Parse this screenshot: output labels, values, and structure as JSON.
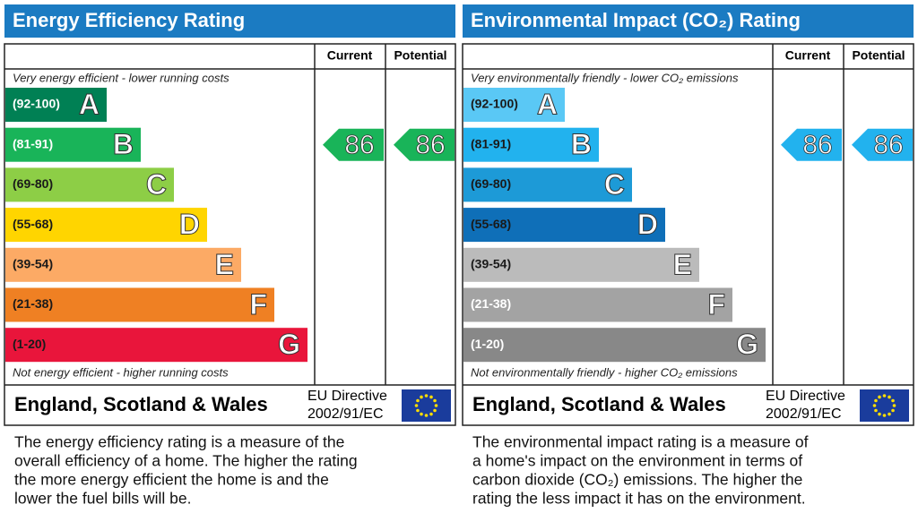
{
  "panels": [
    {
      "title": "Energy Efficiency Rating",
      "current_header": "Current",
      "potential_header": "Potential",
      "top_note": "Very energy efficient - lower running costs",
      "bottom_note": "Not energy efficient - higher running costs",
      "bands": [
        {
          "range": "(92-100)",
          "letter": "A",
          "color": "#008054",
          "text_color": "#ffffff"
        },
        {
          "range": "(81-91)",
          "letter": "B",
          "color": "#19b459",
          "text_color": "#ffffff"
        },
        {
          "range": "(69-80)",
          "letter": "C",
          "color": "#8dce46",
          "text_color": "#1a1a1a"
        },
        {
          "range": "(55-68)",
          "letter": "D",
          "color": "#ffd500",
          "text_color": "#1a1a1a"
        },
        {
          "range": "(39-54)",
          "letter": "E",
          "color": "#fcaa65",
          "text_color": "#1a1a1a"
        },
        {
          "range": "(21-38)",
          "letter": "F",
          "color": "#ef8023",
          "text_color": "#1a1a1a"
        },
        {
          "range": "(1-20)",
          "letter": "G",
          "color": "#e9153b",
          "text_color": "#1a1a1a"
        }
      ],
      "current": 86,
      "potential": 86,
      "region": "England, Scotland & Wales",
      "directive": [
        "EU Directive",
        "2002/91/EC"
      ],
      "description": [
        "The energy efficiency rating is a measure of the",
        "overall efficiency of a home. The higher the rating",
        "the more energy efficient the home is and the",
        "lower the fuel bills will be."
      ]
    },
    {
      "title": "Environmental Impact (CO₂) Rating",
      "current_header": "Current",
      "potential_header": "Potential",
      "top_note": "Very environmentally friendly - lower CO₂ emissions",
      "bottom_note": "Not environmentally friendly - higher CO₂ emissions",
      "bands": [
        {
          "range": "(92-100)",
          "letter": "A",
          "color": "#5ac8f5",
          "text_color": "#1a1a1a"
        },
        {
          "range": "(81-91)",
          "letter": "B",
          "color": "#22b2ee",
          "text_color": "#1a1a1a"
        },
        {
          "range": "(69-80)",
          "letter": "C",
          "color": "#1d9ad7",
          "text_color": "#1a1a1a"
        },
        {
          "range": "(55-68)",
          "letter": "D",
          "color": "#0f6fb8",
          "text_color": "#1a1a1a"
        },
        {
          "range": "(39-54)",
          "letter": "E",
          "color": "#bbbbbb",
          "text_color": "#1a1a1a"
        },
        {
          "range": "(21-38)",
          "letter": "F",
          "color": "#a3a3a3",
          "text_color": "#ffffff"
        },
        {
          "range": "(1-20)",
          "letter": "G",
          "color": "#888888",
          "text_color": "#ffffff"
        }
      ],
      "current": 86,
      "potential": 86,
      "region": "England, Scotland & Wales",
      "directive": [
        "EU Directive",
        "2002/91/EC"
      ],
      "description": [
        "The environmental impact rating is a measure of",
        "a home's impact on the environment in terms of",
        "carbon dioxide (CO₂) emissions. The higher the",
        "rating the less impact it has on the environment."
      ]
    }
  ]
}
